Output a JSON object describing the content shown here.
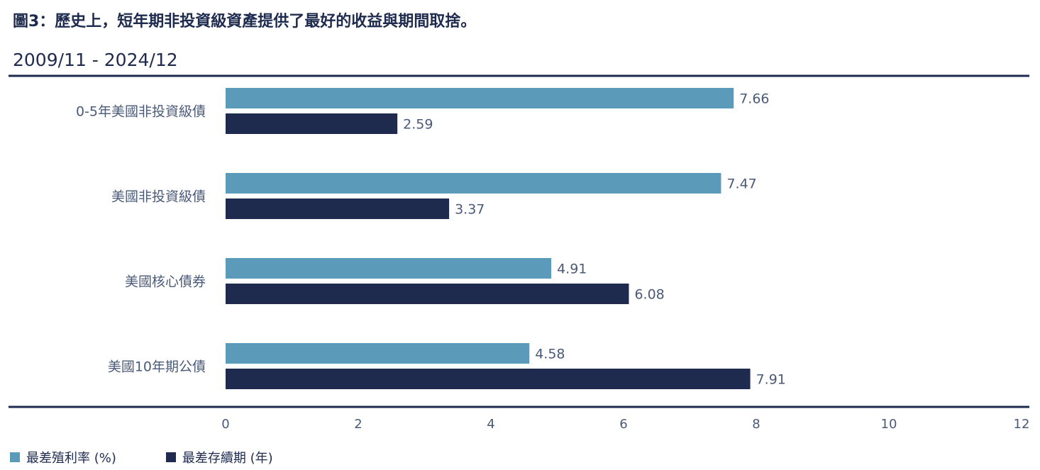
{
  "title": "圖3：歷史上，短年期非投資級資產提供了最好的收益與期間取捨。",
  "subtitle": "2009/11 - 2024/12",
  "colors": {
    "series1": "#5b9ab8",
    "series2": "#1e2b4f",
    "text": "#4a5a78",
    "axis": "#1e2b4f"
  },
  "chart_data": {
    "type": "bar",
    "orientation": "horizontal",
    "categories": [
      "0-5年美國非投資級債",
      "美國非投資級債",
      "美國核心債券",
      "美國10年期公債"
    ],
    "series": [
      {
        "name": "最差殖利率 (%)",
        "values": [
          7.66,
          7.47,
          4.91,
          4.58
        ]
      },
      {
        "name": "最差存續期 (年)",
        "values": [
          2.59,
          3.37,
          6.08,
          7.91
        ]
      }
    ],
    "value_labels": [
      [
        "7.66",
        "7.47",
        "4.91",
        "4.58"
      ],
      [
        "2.59",
        "3.37",
        "6.08",
        "7.91"
      ]
    ],
    "xlim": [
      0,
      12
    ],
    "xticks": [
      "0",
      "2",
      "4",
      "6",
      "8",
      "10",
      "12"
    ],
    "grid": false,
    "legend_position": "bottom-left"
  }
}
